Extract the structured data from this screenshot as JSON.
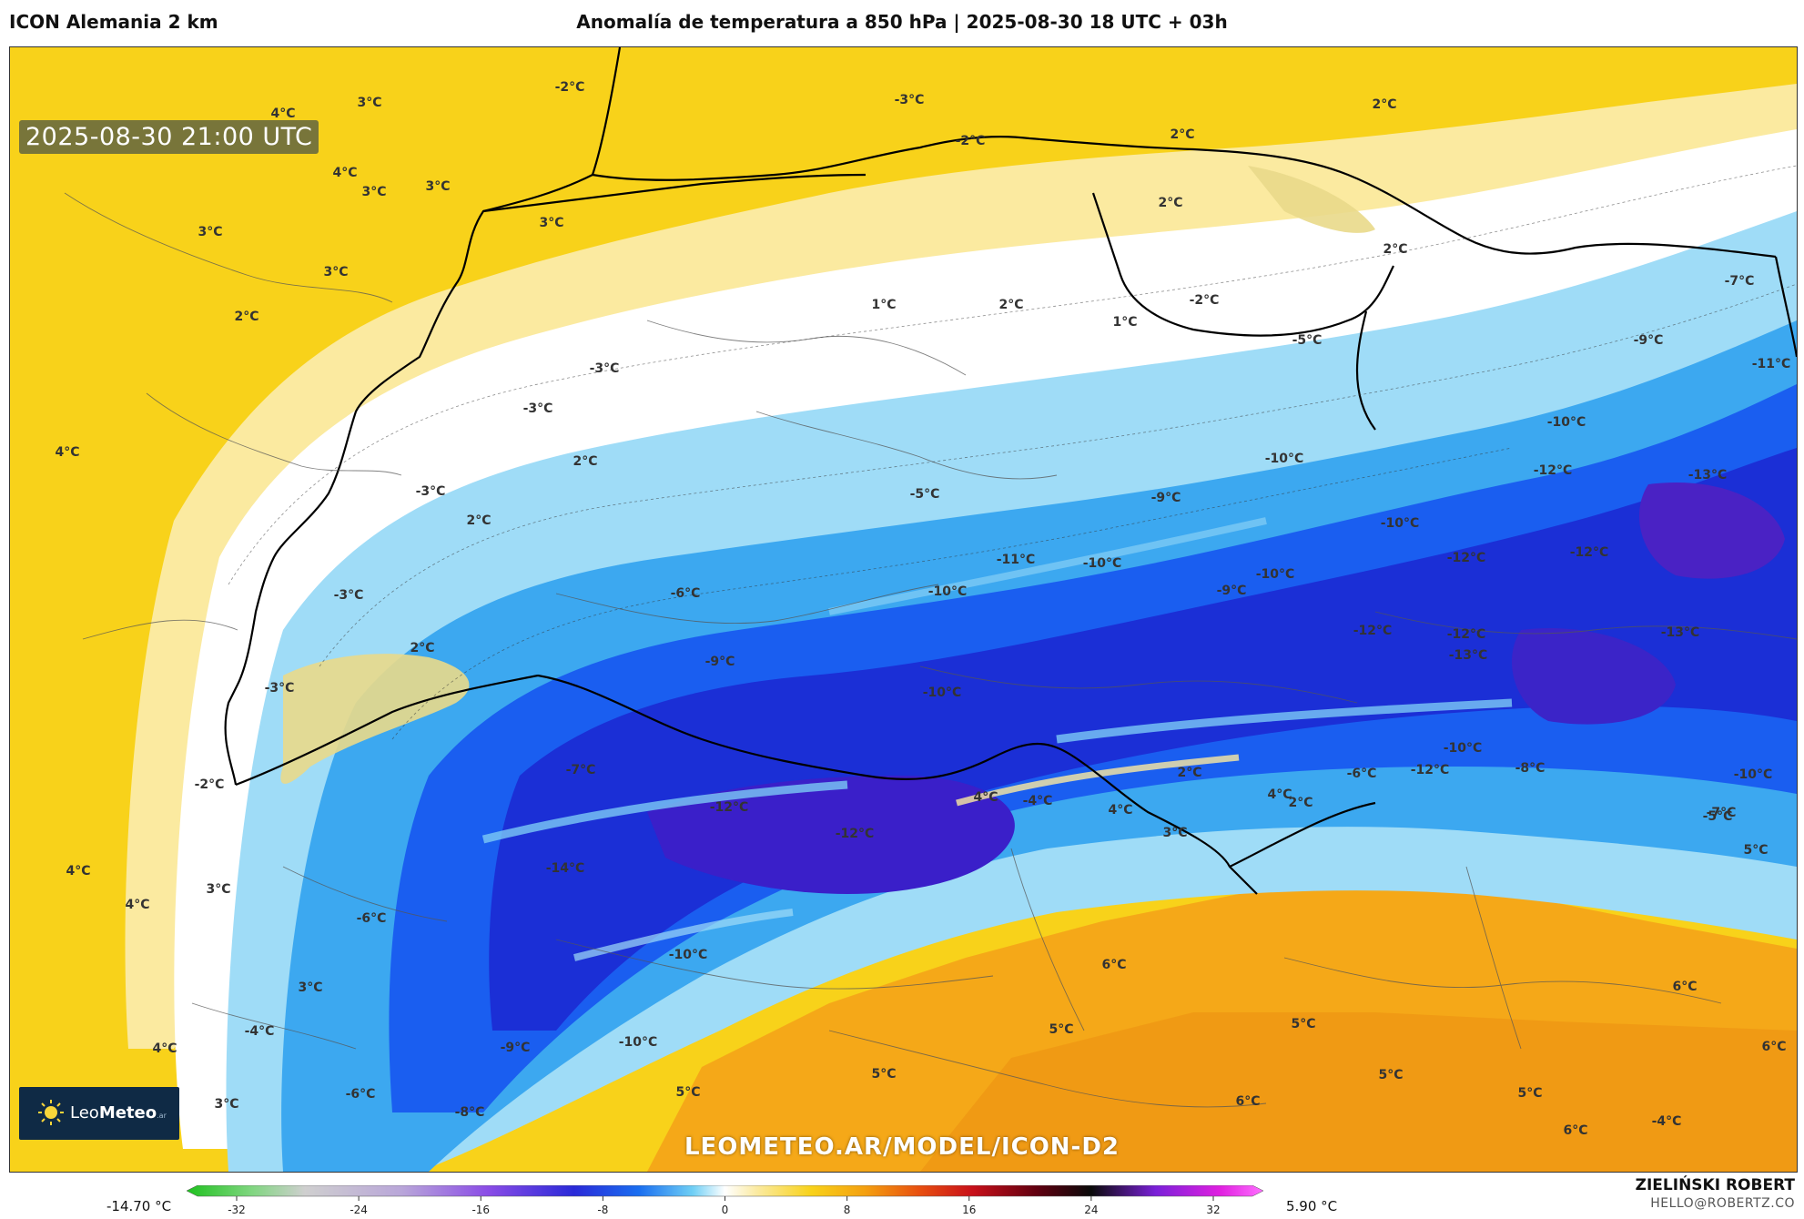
{
  "header": {
    "model_name": "ICON Alemania 2 km",
    "title": "Anomalía de temperatura a 850 hPa | 2025-08-30 18 UTC + 03h"
  },
  "map": {
    "valid_time": "2025-08-30 21:00 UTC",
    "watermark": "LEOMETEO.AR/MODEL/ICON-D2",
    "logo": {
      "brand_light": "Leo",
      "brand_bold": "Meteo",
      "brand_suffix": ".ar"
    },
    "labels": [
      "4°C",
      "3°C",
      "-2°C",
      "-3°C",
      "2°C",
      "4°C",
      "3°C",
      "3°C",
      "3°C",
      "3°C",
      "3°C",
      "2°C",
      "2°C",
      "-2°C",
      "2°C",
      "1°C",
      "2°C",
      "1°C",
      "-2°C",
      "-5°C",
      "2°C",
      "-7°C",
      "-9°C",
      "-11°C",
      "-3°C",
      "-3°C",
      "-10°C",
      "-12°C",
      "4°C",
      "2°C",
      "-3°C",
      "-10°C",
      "-9°C",
      "-13°C",
      "2°C",
      "-5°C",
      "-10°C",
      "-11°C",
      "-12°C",
      "-10°C",
      "-9°C",
      "-10°C",
      "-12°C",
      "-12°C",
      "-3°C",
      "-6°C",
      "-10°C",
      "-13°C",
      "2°C",
      "-9°C",
      "-12°C",
      "-13°C",
      "-3°C",
      "-10°C",
      "-2°C",
      "-7°C",
      "-12°C",
      "-12°C",
      "4°C",
      "-4°C",
      "4°C",
      "2°C",
      "4°C",
      "-6°C",
      "-8°C",
      "-10°C",
      "-12°C",
      "-10°C",
      "-7°C",
      "2°C",
      "-14°C",
      "3°C",
      "-5°C",
      "5°C",
      "4°C",
      "3°C",
      "4°C",
      "3°C",
      "-6°C",
      "-10°C",
      "6°C",
      "6°C",
      "-4°C",
      "4°C",
      "-9°C",
      "-10°C",
      "5°C",
      "5°C",
      "5°C",
      "5°C",
      "6°C",
      "5°C",
      "3°C",
      "-6°C",
      "-8°C",
      "6°C",
      "5°C",
      "6°C",
      "-4°C"
    ]
  },
  "colorbar": {
    "min_label": "-14.70 °C",
    "max_label": "5.90 °C",
    "ticks": [
      "-32",
      "-24",
      "-16",
      "-8",
      "0",
      "8",
      "16",
      "24",
      "32"
    ]
  },
  "credits": {
    "author": "ZIELIŃSKI ROBERT",
    "email": "HELLO@ROBERTZ.CO"
  }
}
